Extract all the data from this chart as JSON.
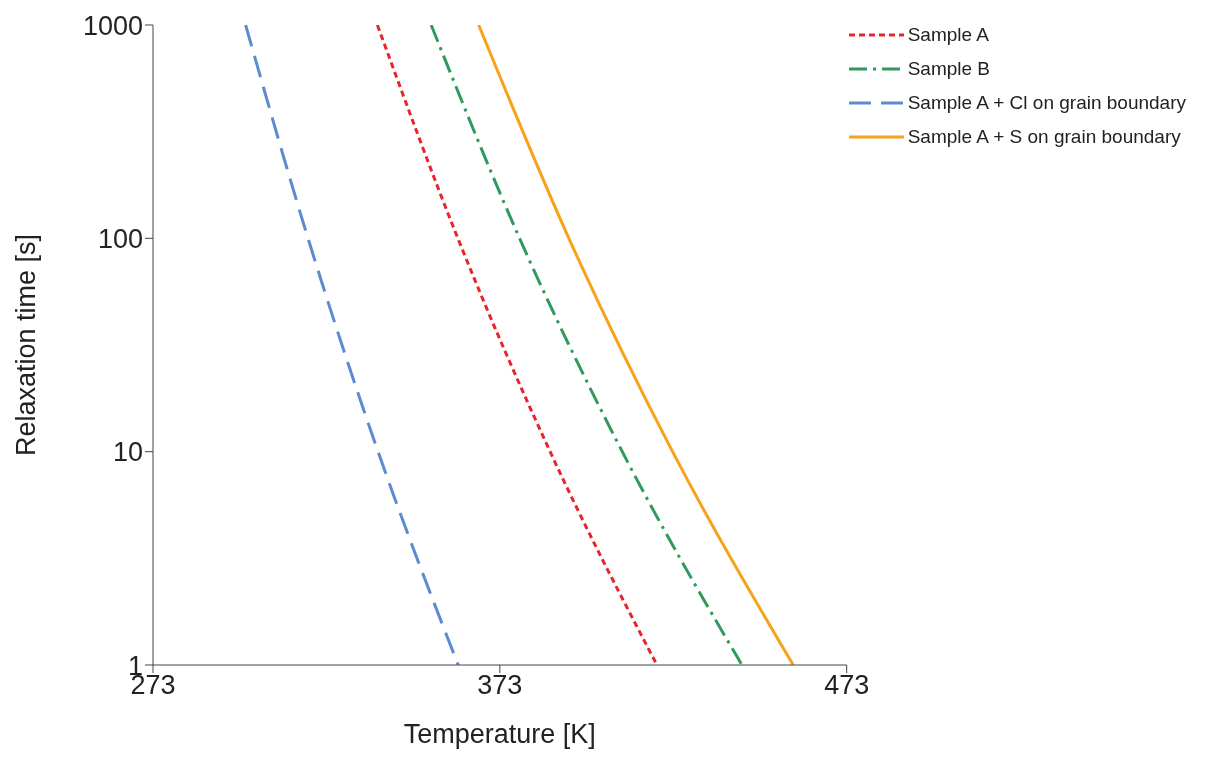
{
  "chart_data": {
    "type": "line",
    "xlabel": "Temperature [K]",
    "ylabel": "Relaxation time [s]",
    "xlim": [
      273,
      473
    ],
    "xticks": [
      273,
      373,
      473
    ],
    "ylim": [
      1,
      1000
    ],
    "yticks": [
      1,
      10,
      100,
      1000
    ],
    "log": "y",
    "grid": false,
    "legend": "top right",
    "marker": "none",
    "series": [
      {
        "name": "Sample A",
        "color": "#e8242c",
        "line_style": "dotted",
        "x": [
          337.7,
          360.9,
          387.5,
          418.3
        ],
        "values": [
          1000,
          100,
          10,
          1
        ]
      },
      {
        "name": "Sample B",
        "color": "#2e9a5e",
        "line_style": "dashdot",
        "x": [
          353.2,
          378.7,
          408.3,
          442.8
        ],
        "values": [
          1000,
          100,
          10,
          1
        ]
      },
      {
        "name": "Sample A + Cl on grain boundary",
        "color": "#5b8bd0",
        "line_style": "dashed",
        "x": [
          299.7,
          317.7,
          337.9,
          361.0
        ],
        "values": [
          1000,
          100,
          10,
          1
        ]
      },
      {
        "name": "Sample A + S on grain boundary",
        "color": "#f7a21b",
        "line_style": "solid",
        "x": [
          366.9,
          392.9,
          422.8,
          457.6
        ],
        "values": [
          1000,
          100,
          10,
          1
        ]
      }
    ]
  }
}
